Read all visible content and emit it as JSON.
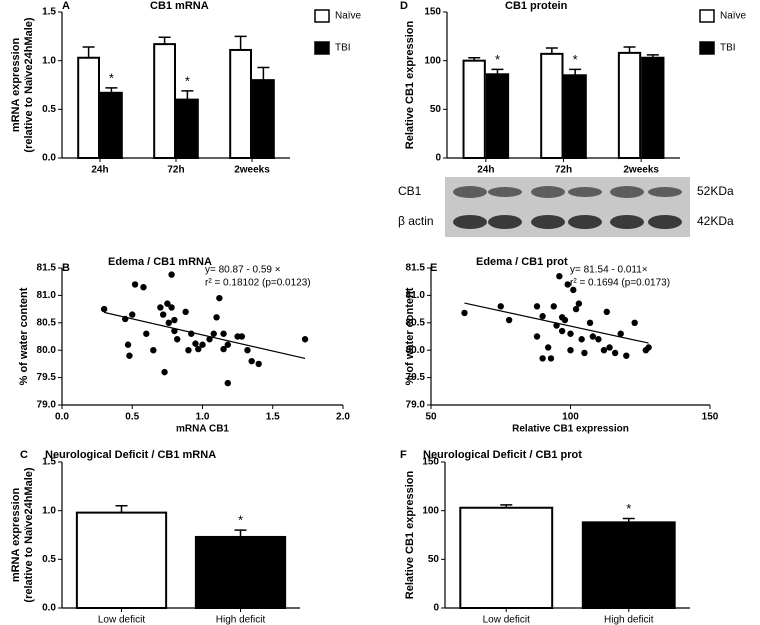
{
  "chart_data": [
    {
      "type": "bar",
      "panel": "A",
      "title": "CB1 mRNA",
      "ylabel": [
        "mRNA expression",
        "(relative to Naïve24hMale)"
      ],
      "categories": [
        "24h",
        "72h",
        "2weeks"
      ],
      "series": [
        {
          "name": "Naïve",
          "color": "#ffffff",
          "values": [
            1.03,
            1.17,
            1.11
          ],
          "errors": [
            0.11,
            0.07,
            0.14
          ],
          "significance": [
            null,
            null,
            null
          ]
        },
        {
          "name": "TBI",
          "color": "#000000",
          "values": [
            0.67,
            0.6,
            0.8
          ],
          "errors": [
            0.05,
            0.09,
            0.13
          ],
          "significance": [
            "*",
            "*",
            null
          ]
        }
      ],
      "ylim": [
        0,
        1.5
      ],
      "yticks": [
        {
          "value": 0,
          "label": "0.0"
        },
        {
          "value": 0.5,
          "label": "0.5"
        },
        {
          "value": 1,
          "label": "1.0"
        },
        {
          "value": 1.5,
          "label": "1.5"
        }
      ]
    },
    {
      "type": "bar",
      "panel": "D",
      "title": "CB1 protein",
      "ylabel": [
        "Relative CB1 expression"
      ],
      "categories": [
        "24h",
        "72h",
        "2weeks"
      ],
      "series": [
        {
          "name": "Naïve",
          "color": "#ffffff",
          "values": [
            100,
            107,
            108
          ],
          "errors": [
            3,
            6,
            6
          ],
          "significance": [
            null,
            null,
            null
          ]
        },
        {
          "name": "TBI",
          "color": "#000000",
          "values": [
            86,
            85,
            103
          ],
          "errors": [
            5,
            6,
            3
          ],
          "significance": [
            "*",
            "*",
            null
          ]
        }
      ],
      "ylim": [
        0,
        150
      ],
      "yticks": [
        0,
        50,
        100,
        150
      ]
    },
    {
      "type": "scatter",
      "panel": "B",
      "title": "Edema / CB1 mRNA",
      "xlabel": "mRNA CB1",
      "ylabel": [
        "% of water content"
      ],
      "annotations": [
        "y= 80.87 - 0.59 ×",
        "r² = 0.18102 (p=0.0123)"
      ],
      "x": [
        0.3,
        0.45,
        0.47,
        0.48,
        0.5,
        0.52,
        0.58,
        0.6,
        0.65,
        0.7,
        0.72,
        0.73,
        0.75,
        0.76,
        0.78,
        0.78,
        0.8,
        0.8,
        0.82,
        0.88,
        0.9,
        0.92,
        0.95,
        0.97,
        1.0,
        1.05,
        1.08,
        1.1,
        1.12,
        1.15,
        1.15,
        1.18,
        1.18,
        1.25,
        1.28,
        1.32,
        1.35,
        1.4,
        1.73
      ],
      "y": [
        80.75,
        80.57,
        80.1,
        79.9,
        80.65,
        81.2,
        81.15,
        80.3,
        80.0,
        80.78,
        80.65,
        79.6,
        80.85,
        80.5,
        81.38,
        80.78,
        80.35,
        80.55,
        80.2,
        80.7,
        80.0,
        80.3,
        80.12,
        80.02,
        80.1,
        80.2,
        80.3,
        80.6,
        80.95,
        80.3,
        80.02,
        79.4,
        80.1,
        80.25,
        80.25,
        80.0,
        79.8,
        79.75,
        80.2
      ],
      "trendline": {
        "x": [
          0.3,
          1.73
        ],
        "y": [
          80.69,
          79.85
        ]
      },
      "xlim": [
        0,
        2
      ],
      "xticks": [
        {
          "value": 0,
          "label": "0.0"
        },
        {
          "value": 0.5,
          "label": "0.5"
        },
        {
          "value": 1,
          "label": "1.0"
        },
        {
          "value": 1.5,
          "label": "1.5"
        },
        {
          "value": 2,
          "label": "2.0"
        }
      ],
      "ylim": [
        79,
        81.5
      ],
      "yticks": [
        {
          "value": 79,
          "label": "79.0"
        },
        79.5,
        {
          "value": 80,
          "label": "80.0"
        },
        80.5,
        {
          "value": 81,
          "label": "81.0"
        },
        81.5
      ]
    },
    {
      "type": "scatter",
      "panel": "E",
      "title": "Edema / CB1 prot",
      "xlabel": "Relative CB1 expression",
      "ylabel": [
        "% of water content"
      ],
      "annotations": [
        "y= 81.54 - 0.011×",
        "r² = 0.1694 (p=0.0173)"
      ],
      "x": [
        62,
        75,
        78,
        88,
        88,
        90,
        90,
        92,
        93,
        94,
        95,
        96,
        97,
        97,
        98,
        99,
        100,
        100,
        101,
        102,
        103,
        104,
        105,
        107,
        108,
        110,
        112,
        113,
        114,
        116,
        118,
        120,
        123,
        127,
        128
      ],
      "y": [
        80.68,
        80.8,
        80.55,
        80.8,
        80.25,
        80.62,
        79.85,
        80.05,
        79.85,
        80.8,
        80.45,
        81.35,
        80.6,
        80.35,
        80.55,
        81.2,
        80.3,
        80.0,
        81.1,
        80.75,
        80.85,
        80.2,
        79.95,
        80.5,
        80.25,
        80.2,
        80.0,
        80.7,
        80.05,
        79.95,
        80.3,
        79.9,
        80.5,
        80.0,
        80.05
      ],
      "trendline": {
        "x": [
          62,
          128
        ],
        "y": [
          80.86,
          80.13
        ]
      },
      "xlim": [
        50,
        150
      ],
      "xticks": [
        50,
        100,
        150
      ],
      "ylim": [
        79,
        81.5
      ],
      "yticks": [
        {
          "value": 79,
          "label": "79.0"
        },
        79.5,
        {
          "value": 80,
          "label": "80.0"
        },
        80.5,
        {
          "value": 81,
          "label": "81.0"
        },
        81.5
      ]
    },
    {
      "type": "bar",
      "panel": "C",
      "title": "Neurological Deficit / CB1 mRNA",
      "ylabel": [
        "mRNA expression",
        "(relative to Naïve24hMale)"
      ],
      "categories": [
        "Low deficit",
        "High deficit"
      ],
      "values": [
        0.98,
        0.73
      ],
      "errors": [
        0.07,
        0.07
      ],
      "colors": [
        "#ffffff",
        "#000000"
      ],
      "significance": [
        null,
        "*"
      ],
      "ylim": [
        0,
        1.5
      ],
      "yticks": [
        {
          "value": 0,
          "label": "0.0"
        },
        {
          "value": 0.5,
          "label": "0.5"
        },
        {
          "value": 1,
          "label": "1.0"
        },
        {
          "value": 1.5,
          "label": "1.5"
        }
      ]
    },
    {
      "type": "bar",
      "panel": "F",
      "title": "Neurological Deficit / CB1 prot",
      "ylabel": [
        "Relative CB1 expression"
      ],
      "categories": [
        "Low deficit",
        "High deficit"
      ],
      "values": [
        103,
        88
      ],
      "errors": [
        3,
        4
      ],
      "colors": [
        "#ffffff",
        "#000000"
      ],
      "significance": [
        null,
        "*"
      ],
      "ylim": [
        0,
        150
      ],
      "yticks": [
        0,
        50,
        100,
        150
      ]
    }
  ],
  "blot": {
    "rows": [
      {
        "label": "CB1",
        "size": "52KDa"
      },
      {
        "label": "β actin",
        "size": "42KDa"
      }
    ]
  }
}
